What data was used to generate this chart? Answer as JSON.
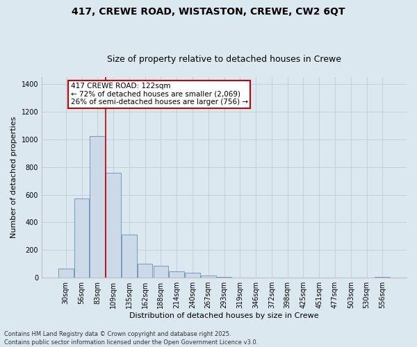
{
  "title_line1": "417, CREWE ROAD, WISTASTON, CREWE, CW2 6QT",
  "title_line2": "Size of property relative to detached houses in Crewe",
  "xlabel": "Distribution of detached houses by size in Crewe",
  "ylabel": "Number of detached properties",
  "bar_labels": [
    "30sqm",
    "56sqm",
    "83sqm",
    "109sqm",
    "135sqm",
    "162sqm",
    "188sqm",
    "214sqm",
    "240sqm",
    "267sqm",
    "293sqm",
    "319sqm",
    "346sqm",
    "372sqm",
    "398sqm",
    "425sqm",
    "451sqm",
    "477sqm",
    "503sqm",
    "530sqm",
    "556sqm"
  ],
  "bar_values": [
    65,
    575,
    1025,
    760,
    310,
    100,
    85,
    45,
    35,
    15,
    8,
    0,
    0,
    0,
    0,
    0,
    0,
    0,
    0,
    0,
    5
  ],
  "bar_color": "#ccd9e8",
  "bar_edge_color": "#7799bb",
  "vline_x_index": 2.5,
  "annotation_text": "417 CREWE ROAD: 122sqm\n← 72% of detached houses are smaller (2,069)\n26% of semi-detached houses are larger (756) →",
  "annotation_box_color": "#ffffff",
  "annotation_box_edge_color": "#cc0000",
  "vline_color": "#cc0000",
  "ylim": [
    0,
    1450
  ],
  "yticks": [
    0,
    200,
    400,
    600,
    800,
    1000,
    1200,
    1400
  ],
  "grid_color": "#c5cfe0",
  "bg_color": "#dce8f0",
  "plot_bg_color": "#dce8f0",
  "fig_bg_color": "#dce8f0",
  "footer_line1": "Contains HM Land Registry data © Crown copyright and database right 2025.",
  "footer_line2": "Contains public sector information licensed under the Open Government Licence v3.0.",
  "title_fontsize": 10,
  "subtitle_fontsize": 9,
  "tick_fontsize": 7,
  "ylabel_fontsize": 8,
  "xlabel_fontsize": 8,
  "footer_fontsize": 6,
  "annotation_fontsize": 7.5
}
